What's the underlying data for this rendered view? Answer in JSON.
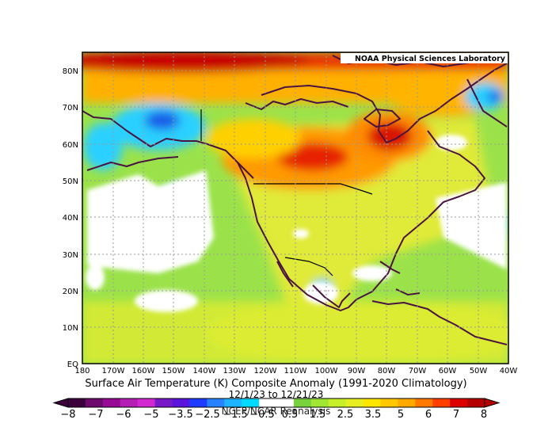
{
  "credit": "NOAA Physical Sciences Laboratory",
  "title": "Surface Air Temperature (K) Composite Anomaly (1991-2020 Climatology)",
  "date_range": "12/1/23 to 12/21/23",
  "source": "NCEP/NCAR Reanalysis",
  "lat_labels": [
    "80N",
    "70N",
    "60N",
    "50N",
    "40N",
    "30N",
    "20N",
    "10N",
    "EQ"
  ],
  "lon_labels": [
    "180",
    "170W",
    "160W",
    "150W",
    "140W",
    "130W",
    "120W",
    "110W",
    "100W",
    "90W",
    "80W",
    "70W",
    "60W",
    "50W",
    "40W"
  ],
  "colorbar": {
    "labels": [
      "−8",
      "−7",
      "−6",
      "−5",
      "−3.5",
      "−2.5",
      "−1.5",
      "−0.5",
      "0.5",
      "1.5",
      "2.5",
      "3.5",
      "5",
      "6",
      "7",
      "8"
    ],
    "colors": [
      "#3c003c",
      "#6e0a6e",
      "#960a96",
      "#b41eb4",
      "#d228d2",
      "#7819c8",
      "#5a14dc",
      "#1e3cff",
      "#2882ff",
      "#1eb4ff",
      "#00dcff",
      "#ffffff",
      "#ffffff",
      "#78d23c",
      "#a0e632",
      "#c8f028",
      "#e6f020",
      "#ffe600",
      "#ffc800",
      "#ffaa00",
      "#ff7800",
      "#ff4000",
      "#dc0000",
      "#b40000"
    ]
  },
  "palette": {
    "ocean_base": "#9be24a",
    "land_base": "#d8ea3e",
    "warm": "#ff9a00",
    "hot": "#e62200",
    "extreme": "#c00000",
    "cool": "#1ec8ff",
    "cold": "#1e5ce6",
    "neutral": "#ffffff",
    "coast": "#4a1440"
  }
}
